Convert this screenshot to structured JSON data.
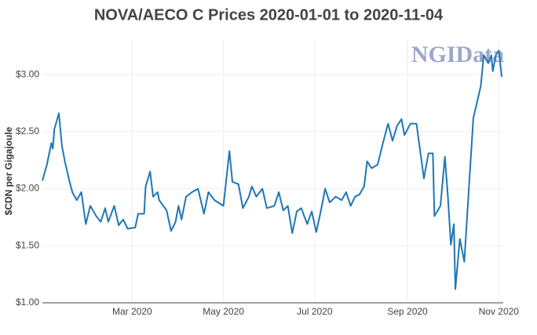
{
  "chart_data": {
    "type": "line",
    "title": "NOVA/AECO C Prices 2020-01-01 to 2020-11-04",
    "y_label": "$CDN per Gigajoule",
    "watermark": "NGIData",
    "x": [
      "2020-01-01",
      "2020-01-04",
      "2020-01-07",
      "2020-01-08",
      "2020-01-09",
      "2020-01-12",
      "2020-01-14",
      "2020-01-16",
      "2020-01-19",
      "2020-01-21",
      "2020-01-24",
      "2020-01-27",
      "2020-01-30",
      "2020-02-02",
      "2020-02-06",
      "2020-02-09",
      "2020-02-12",
      "2020-02-14",
      "2020-02-18",
      "2020-02-21",
      "2020-02-24",
      "2020-02-27",
      "2020-03-03",
      "2020-03-05",
      "2020-03-09",
      "2020-03-10",
      "2020-03-13",
      "2020-03-15",
      "2020-03-18",
      "2020-03-19",
      "2020-03-24",
      "2020-03-27",
      "2020-03-30",
      "2020-04-01",
      "2020-04-03",
      "2020-04-06",
      "2020-04-10",
      "2020-04-14",
      "2020-04-18",
      "2020-04-21",
      "2020-04-25",
      "2020-05-01",
      "2020-05-05",
      "2020-05-07",
      "2020-05-11",
      "2020-05-14",
      "2020-05-18",
      "2020-05-20",
      "2020-05-23",
      "2020-05-27",
      "2020-05-30",
      "2020-06-04",
      "2020-06-07",
      "2020-06-10",
      "2020-06-13",
      "2020-06-16",
      "2020-06-19",
      "2020-06-22",
      "2020-06-26",
      "2020-06-29",
      "2020-07-02",
      "2020-07-05",
      "2020-07-08",
      "2020-07-11",
      "2020-07-15",
      "2020-07-19",
      "2020-07-22",
      "2020-07-25",
      "2020-07-28",
      "2020-07-31",
      "2020-08-03",
      "2020-08-05",
      "2020-08-08",
      "2020-08-12",
      "2020-08-16",
      "2020-08-19",
      "2020-08-22",
      "2020-08-25",
      "2020-08-28",
      "2020-08-30",
      "2020-09-03",
      "2020-09-07",
      "2020-09-10",
      "2020-09-12",
      "2020-09-15",
      "2020-09-18",
      "2020-09-19",
      "2020-09-23",
      "2020-09-26",
      "2020-09-28",
      "2020-09-30",
      "2020-10-02",
      "2020-10-03",
      "2020-10-06",
      "2020-10-09",
      "2020-10-12",
      "2020-10-15",
      "2020-10-17",
      "2020-10-20",
      "2020-10-22",
      "2020-10-25",
      "2020-10-27",
      "2020-10-28",
      "2020-10-30",
      "2020-11-01",
      "2020-11-03"
    ],
    "series": [
      {
        "name": "NOVA/AECO C",
        "color": "#1f77b4",
        "values": [
          2.07,
          2.21,
          2.4,
          2.35,
          2.52,
          2.66,
          2.38,
          2.24,
          2.07,
          1.97,
          1.9,
          1.97,
          1.69,
          1.85,
          1.76,
          1.71,
          1.83,
          1.71,
          1.85,
          1.68,
          1.73,
          1.65,
          1.66,
          1.78,
          1.78,
          2.02,
          2.15,
          1.93,
          1.97,
          1.9,
          1.81,
          1.63,
          1.71,
          1.85,
          1.73,
          1.93,
          1.97,
          2.0,
          1.78,
          1.97,
          1.9,
          1.85,
          2.33,
          2.06,
          2.04,
          1.83,
          1.93,
          2.02,
          1.93,
          2.0,
          1.83,
          1.85,
          1.97,
          1.81,
          1.85,
          1.61,
          1.8,
          1.83,
          1.69,
          1.8,
          1.62,
          1.8,
          2.0,
          1.88,
          1.93,
          1.9,
          1.97,
          1.85,
          1.93,
          1.95,
          2.02,
          2.24,
          2.18,
          2.21,
          2.42,
          2.57,
          2.42,
          2.55,
          2.61,
          2.47,
          2.57,
          2.57,
          2.28,
          2.09,
          2.31,
          2.31,
          1.76,
          1.85,
          2.28,
          1.93,
          1.51,
          1.69,
          1.12,
          1.56,
          1.36,
          2.0,
          2.62,
          2.73,
          2.9,
          3.17,
          3.1,
          3.17,
          3.03,
          3.17,
          3.21,
          2.98
        ]
      }
    ],
    "xlim": [
      "2020-01-01",
      "2020-11-04"
    ],
    "xticks": [
      {
        "value": "2020-03-01",
        "label": "Mar 2020"
      },
      {
        "value": "2020-05-01",
        "label": "May 2020"
      },
      {
        "value": "2020-07-01",
        "label": "Jul 2020"
      },
      {
        "value": "2020-09-01",
        "label": "Sep 2020"
      },
      {
        "value": "2020-11-01",
        "label": "Nov 2020"
      }
    ],
    "ylim": [
      1,
      3.31
    ],
    "yticks": [
      {
        "value": 1,
        "label": "$1.00"
      },
      {
        "value": 1.5,
        "label": "$1.50"
      },
      {
        "value": 2,
        "label": "$2.00"
      },
      {
        "value": 2.5,
        "label": "$2.50"
      },
      {
        "value": 3,
        "label": "$3.00"
      }
    ],
    "grid": true
  }
}
